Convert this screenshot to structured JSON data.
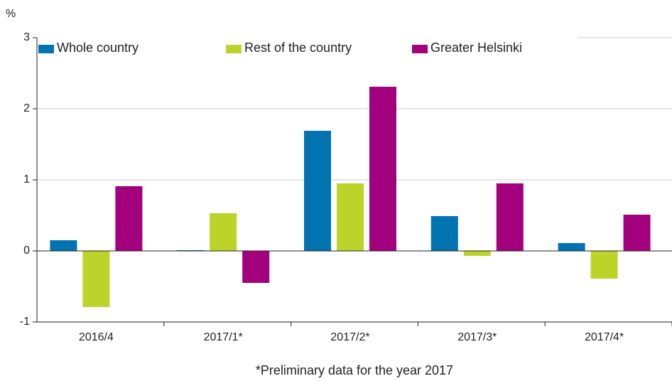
{
  "chart_data": {
    "type": "bar",
    "y_label": "%",
    "x_label": "*Preliminary data for the year 2017",
    "categories": [
      "2016/4",
      "2017/1*",
      "2017/2*",
      "2017/3*",
      "2017/4*"
    ],
    "series": [
      {
        "name": "Whole country",
        "color": "#0073b0",
        "values": [
          0.15,
          0.01,
          1.69,
          0.49,
          0.11
        ]
      },
      {
        "name": "Rest of the country",
        "color": "#bcd42a",
        "values": [
          -0.79,
          0.53,
          0.95,
          -0.07,
          -0.39
        ]
      },
      {
        "name": "Greater Helsinki",
        "color": "#a3007e",
        "values": [
          0.91,
          -0.45,
          2.31,
          0.95,
          0.51
        ]
      }
    ],
    "ylim": [
      -1,
      3
    ],
    "yticks": [
      -1,
      0,
      1,
      2,
      3
    ],
    "grid": true,
    "legend": "top"
  }
}
